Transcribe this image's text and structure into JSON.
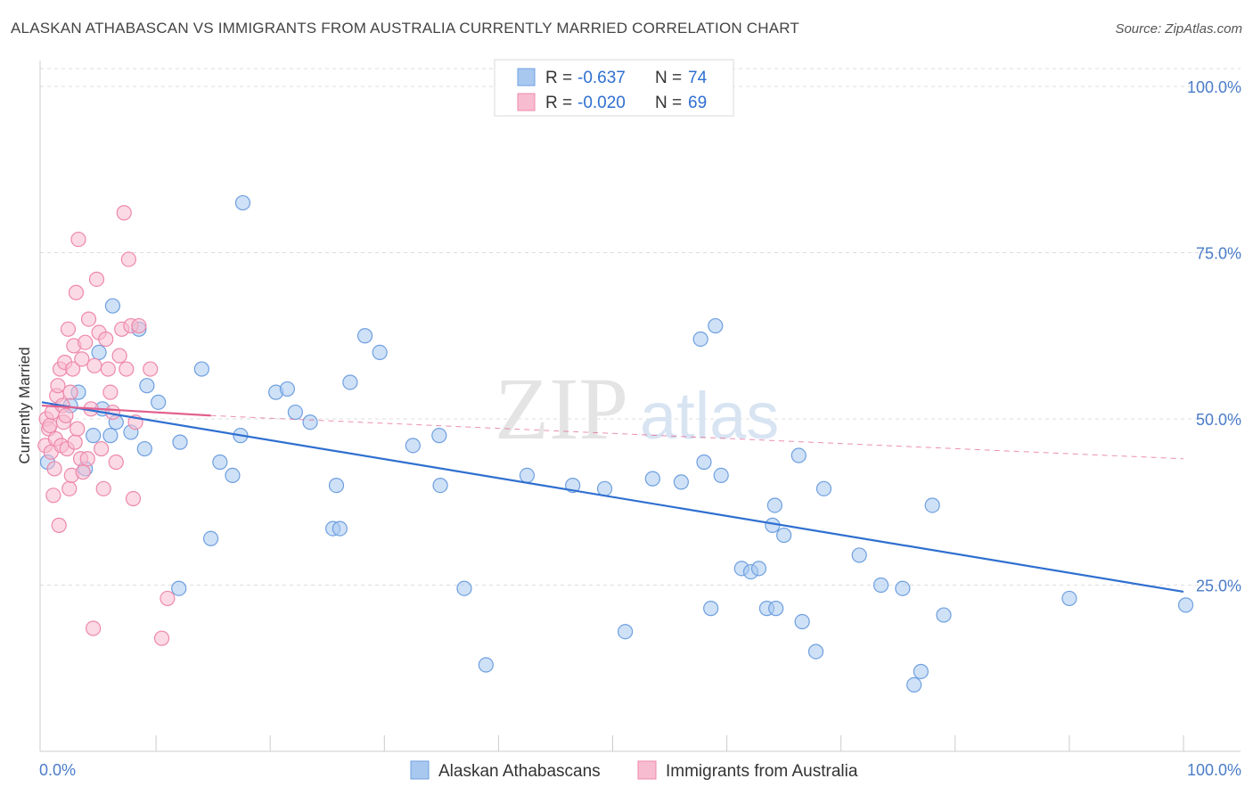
{
  "title": "ALASKAN ATHABASCAN VS IMMIGRANTS FROM AUSTRALIA CURRENTLY MARRIED CORRELATION CHART",
  "source": "Source: ZipAtlas.com",
  "watermark": {
    "zip": "ZIP",
    "atlas": "atlas"
  },
  "chart_data": {
    "type": "scatter",
    "ylabel": "Currently Married",
    "xlim": [
      0,
      100
    ],
    "ylim": [
      0,
      105
    ],
    "x_tick_labels": [
      "0.0%",
      "100.0%"
    ],
    "y_ticks": [
      {
        "value": 25,
        "label": "25.0%"
      },
      {
        "value": 50,
        "label": "50.0%"
      },
      {
        "value": 75,
        "label": "75.0%"
      },
      {
        "value": 100,
        "label": "100.0%"
      }
    ],
    "grid": true,
    "legend_top": [
      {
        "r_label": "R =",
        "r_value": "-0.637",
        "n_label": "N =",
        "n_value": "74",
        "color": "#a8c8f0",
        "stroke": "#6e9fe0"
      },
      {
        "r_label": "R =",
        "r_value": "-0.020",
        "n_label": "N =",
        "n_value": "69",
        "color": "#f8bcd0",
        "stroke": "#ee88aa"
      }
    ],
    "series": [
      {
        "name": "Alaskan Athabascans",
        "color": "#a8c8f0",
        "stroke": "#6e9fe0",
        "trend": {
          "x": [
            0,
            100
          ],
          "y": [
            52.5,
            24.0
          ],
          "color": "#2f6fd0"
        },
        "points": [
          [
            0.5,
            43.5
          ],
          [
            2.5,
            52
          ],
          [
            3.2,
            54
          ],
          [
            3.8,
            42.5
          ],
          [
            4.5,
            47.5
          ],
          [
            5,
            60
          ],
          [
            5.3,
            51.5
          ],
          [
            6,
            47.5
          ],
          [
            6.2,
            67
          ],
          [
            6.5,
            49.5
          ],
          [
            7.8,
            48
          ],
          [
            8.5,
            63.5
          ],
          [
            9,
            45.5
          ],
          [
            9.2,
            55
          ],
          [
            10.2,
            52.5
          ],
          [
            12,
            24.5
          ],
          [
            12.1,
            46.5
          ],
          [
            14,
            57.5
          ],
          [
            14.8,
            32
          ],
          [
            15.6,
            43.5
          ],
          [
            16.7,
            41.5
          ],
          [
            17.4,
            47.5
          ],
          [
            17.6,
            82.5
          ],
          [
            20.5,
            54
          ],
          [
            21.5,
            54.5
          ],
          [
            22.2,
            51
          ],
          [
            23.5,
            49.5
          ],
          [
            25.5,
            33.5
          ],
          [
            25.8,
            40
          ],
          [
            26.1,
            33.5
          ],
          [
            27,
            55.5
          ],
          [
            28.3,
            62.5
          ],
          [
            29.6,
            60
          ],
          [
            32.5,
            46
          ],
          [
            34.8,
            47.5
          ],
          [
            34.9,
            40
          ],
          [
            37,
            24.5
          ],
          [
            38.9,
            13
          ],
          [
            42.5,
            41.5
          ],
          [
            46.5,
            40
          ],
          [
            49.3,
            39.5
          ],
          [
            51.1,
            18
          ],
          [
            53.5,
            41
          ],
          [
            56,
            40.5
          ],
          [
            57.7,
            62
          ],
          [
            58,
            43.5
          ],
          [
            58.6,
            21.5
          ],
          [
            59,
            64
          ],
          [
            59.5,
            41.5
          ],
          [
            61.3,
            27.5
          ],
          [
            62.1,
            27
          ],
          [
            62.8,
            27.5
          ],
          [
            63.5,
            21.5
          ],
          [
            64,
            34
          ],
          [
            64.2,
            37
          ],
          [
            64.3,
            21.5
          ],
          [
            65,
            32.5
          ],
          [
            66.3,
            44.5
          ],
          [
            66.6,
            19.5
          ],
          [
            67.8,
            15
          ],
          [
            68.5,
            39.5
          ],
          [
            71.6,
            29.5
          ],
          [
            73.5,
            25
          ],
          [
            75.4,
            24.5
          ],
          [
            76.4,
            10
          ],
          [
            77,
            12
          ],
          [
            78,
            37
          ],
          [
            79,
            20.5
          ],
          [
            90,
            23
          ],
          [
            100.2,
            22
          ]
        ]
      },
      {
        "name": "Immigrants from Australia",
        "color": "#f8bcd0",
        "stroke": "#ee88aa",
        "trend": {
          "x": [
            0,
            14.8
          ],
          "y": [
            52.0,
            50.5
          ],
          "color": "#e2608e",
          "dashed_to": [
            100,
            44
          ]
        },
        "points": [
          [
            0.3,
            46
          ],
          [
            0.4,
            50
          ],
          [
            0.6,
            48.5
          ],
          [
            0.7,
            49
          ],
          [
            0.8,
            45
          ],
          [
            0.9,
            51
          ],
          [
            1,
            38.5
          ],
          [
            1.1,
            42.5
          ],
          [
            1.2,
            47
          ],
          [
            1.3,
            53.5
          ],
          [
            1.4,
            55
          ],
          [
            1.5,
            34
          ],
          [
            1.6,
            57.5
          ],
          [
            1.7,
            46
          ],
          [
            1.8,
            52
          ],
          [
            1.9,
            49.5
          ],
          [
            2,
            58.5
          ],
          [
            2.1,
            50.5
          ],
          [
            2.2,
            45.5
          ],
          [
            2.3,
            63.5
          ],
          [
            2.4,
            39.5
          ],
          [
            2.5,
            54
          ],
          [
            2.6,
            41.5
          ],
          [
            2.7,
            57.5
          ],
          [
            2.8,
            61
          ],
          [
            2.9,
            46.5
          ],
          [
            3,
            69
          ],
          [
            3.1,
            48.5
          ],
          [
            3.2,
            77
          ],
          [
            3.4,
            44
          ],
          [
            3.5,
            59
          ],
          [
            3.6,
            42
          ],
          [
            3.8,
            61.5
          ],
          [
            4,
            44
          ],
          [
            4.1,
            65
          ],
          [
            4.3,
            51.5
          ],
          [
            4.5,
            18.5
          ],
          [
            4.6,
            58
          ],
          [
            4.8,
            71
          ],
          [
            5,
            63
          ],
          [
            5.2,
            45.5
          ],
          [
            5.4,
            39.5
          ],
          [
            5.6,
            62
          ],
          [
            5.8,
            57.5
          ],
          [
            6,
            54
          ],
          [
            6.2,
            51
          ],
          [
            6.5,
            43.5
          ],
          [
            6.8,
            59.5
          ],
          [
            7,
            63.5
          ],
          [
            7.2,
            81
          ],
          [
            7.4,
            57.5
          ],
          [
            7.6,
            74
          ],
          [
            7.8,
            64
          ],
          [
            8,
            38
          ],
          [
            8.2,
            49.5
          ],
          [
            8.5,
            64
          ],
          [
            9.5,
            57.5
          ],
          [
            10.5,
            17
          ],
          [
            11,
            23
          ]
        ]
      }
    ]
  },
  "bottom_legend": [
    {
      "label": "Alaskan Athabascans",
      "color": "#a8c8f0",
      "stroke": "#6e9fe0"
    },
    {
      "label": "Immigrants from Australia",
      "color": "#f8bcd0",
      "stroke": "#ee88aa"
    }
  ]
}
